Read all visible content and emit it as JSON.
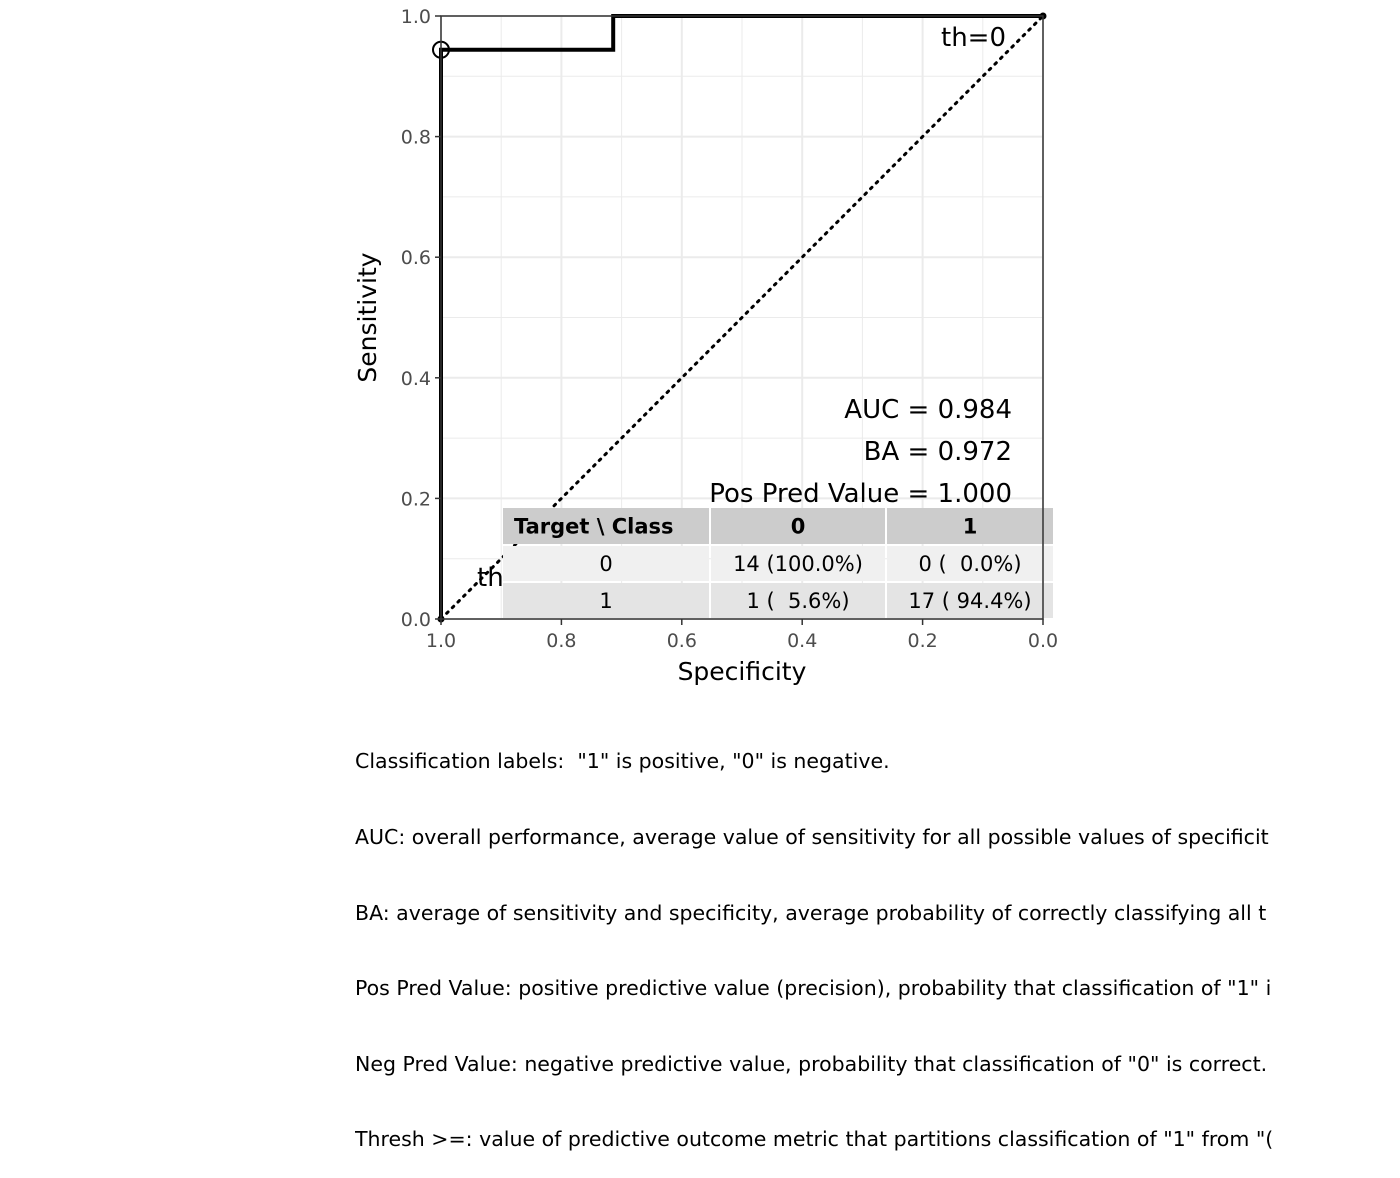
{
  "chart_data": {
    "type": "line",
    "xlabel": "Specificity",
    "ylabel": "Sensitivity",
    "x_reversed": true,
    "xlim": [
      1.0,
      0.0
    ],
    "ylim": [
      0.0,
      1.0
    ],
    "grid": true,
    "x_ticks": [
      "1.0",
      "0.8",
      "0.6",
      "0.4",
      "0.2",
      "0.0"
    ],
    "y_ticks": [
      "0.0",
      "0.2",
      "0.4",
      "0.6",
      "0.8",
      "1.0"
    ],
    "series": [
      {
        "x": [
          1.0,
          1.0,
          1.0,
          0.714,
          0.714,
          0.0,
          0.0
        ],
        "y": [
          0.0,
          0.944,
          0.944,
          0.944,
          1.0,
          1.0,
          1.0
        ]
      }
    ],
    "reference_line": {
      "x": [
        1.0,
        0.0
      ],
      "y": [
        0.0,
        1.0
      ],
      "style": "dotted"
    },
    "marked_point": {
      "x": 1.0,
      "y": 0.944
    },
    "annotations": [
      {
        "text": "th=0",
        "x": 0.0,
        "y": 1.0
      },
      {
        "text": "th",
        "x": 1.0,
        "y": 0.0
      }
    ],
    "stats": [
      "AUC = 0.984",
      "BA = 0.972",
      "Pos Pred Value = 1.000"
    ],
    "confusion_table": {
      "header": [
        "Target \\ Class",
        "0",
        "1"
      ],
      "rows": [
        [
          "0",
          "14 (100.0%)",
          "0 (  0.0%)"
        ],
        [
          "1",
          "1 (  5.6%)",
          "17 ( 94.4%)"
        ]
      ]
    }
  },
  "caption_lines": [
    "Classification labels:  \"1\" is positive, \"0\" is negative.",
    "AUC: overall performance, average value of sensitivity for all possible values of specificit",
    "BA: average of sensitivity and specificity, average probability of correctly classifying all t",
    "Pos Pred Value: positive predictive value (precision), probability that classification of \"1\" i",
    "Neg Pred Value: negative predictive value, probability that classification of \"0\" is correct.",
    "Thresh >=: value of predictive outcome metric that partitions classification of \"1\" from \"("
  ],
  "colors": {
    "curve": "#000000",
    "grid": "#ebebeb",
    "panel_border": "#333333",
    "table_header_bg": "#cccccc",
    "table_row_odd_bg": "#f0f0f0",
    "table_row_even_bg": "#e4e4e4"
  }
}
